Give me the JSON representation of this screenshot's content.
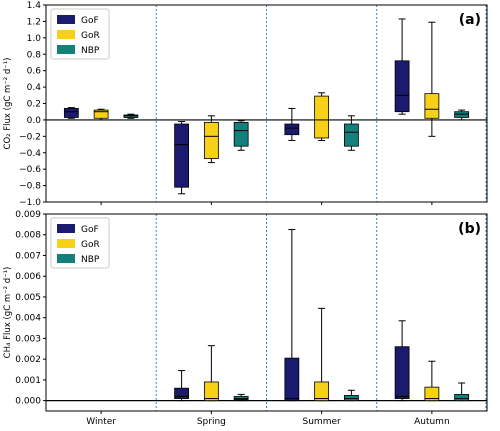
{
  "chart_data": [
    {
      "type": "box",
      "panel_label": "(a)",
      "ylabel": "CO₂ Flux (gC m⁻² d⁻¹)",
      "ylim": [
        -1.0,
        1.4
      ],
      "yticks": [
        "−1.0",
        "−0.8",
        "−0.6",
        "−0.4",
        "−0.2",
        "0.0",
        "0.2",
        "0.4",
        "0.6",
        "0.8",
        "1.0",
        "1.2",
        "1.4"
      ],
      "ytick_values": [
        -1.0,
        -0.8,
        -0.6,
        -0.4,
        -0.2,
        0.0,
        0.2,
        0.4,
        0.6,
        0.8,
        1.0,
        1.2,
        1.4
      ],
      "categories": [
        "Winter",
        "Spring",
        "Summer",
        "Autumn"
      ],
      "legend_position": "upper-left",
      "zero_line": true,
      "season_separators": "dotted",
      "series": [
        {
          "name": "GoF",
          "color": "#1a1a6e",
          "boxes": [
            {
              "whislo": 0.02,
              "q1": 0.03,
              "med": 0.1,
              "q3": 0.14,
              "whishi": 0.15
            },
            {
              "whislo": -0.9,
              "q1": -0.82,
              "med": -0.3,
              "q3": -0.05,
              "whishi": -0.02
            },
            {
              "whislo": -0.25,
              "q1": -0.18,
              "med": -0.1,
              "q3": -0.05,
              "whishi": 0.14
            },
            {
              "whislo": 0.07,
              "q1": 0.1,
              "med": 0.3,
              "q3": 0.72,
              "whishi": 1.23
            }
          ]
        },
        {
          "name": "GoR",
          "color": "#f7d117",
          "boxes": [
            {
              "whislo": 0.0,
              "q1": 0.02,
              "med": 0.1,
              "q3": 0.12,
              "whishi": 0.13
            },
            {
              "whislo": -0.52,
              "q1": -0.47,
              "med": -0.2,
              "q3": -0.03,
              "whishi": 0.05
            },
            {
              "whislo": -0.25,
              "q1": -0.22,
              "med": 0.0,
              "q3": 0.29,
              "whishi": 0.33
            },
            {
              "whislo": -0.2,
              "q1": 0.02,
              "med": 0.13,
              "q3": 0.32,
              "whishi": 1.19
            }
          ]
        },
        {
          "name": "NBP",
          "color": "#13807e",
          "boxes": [
            {
              "whislo": 0.02,
              "q1": 0.03,
              "med": 0.05,
              "q3": 0.06,
              "whishi": 0.07
            },
            {
              "whislo": -0.37,
              "q1": -0.32,
              "med": -0.13,
              "q3": -0.03,
              "whishi": -0.01
            },
            {
              "whislo": -0.37,
              "q1": -0.32,
              "med": -0.15,
              "q3": -0.05,
              "whishi": 0.05
            },
            {
              "whislo": 0.0,
              "q1": 0.03,
              "med": 0.07,
              "q3": 0.1,
              "whishi": 0.12
            }
          ]
        }
      ]
    },
    {
      "type": "box",
      "panel_label": "(b)",
      "ylabel": "CH₄ Flux (gC m⁻² d⁻¹)",
      "ylim": [
        -0.0005,
        0.009
      ],
      "yticks": [
        "0.000",
        "0.001",
        "0.002",
        "0.003",
        "0.004",
        "0.005",
        "0.006",
        "0.007",
        "0.008",
        "0.009"
      ],
      "ytick_values": [
        0.0,
        0.001,
        0.002,
        0.003,
        0.004,
        0.005,
        0.006,
        0.007,
        0.008,
        0.009
      ],
      "categories": [
        "Winter",
        "Spring",
        "Summer",
        "Autumn"
      ],
      "legend_position": "upper-left",
      "zero_line": true,
      "season_separators": "dotted",
      "series": [
        {
          "name": "GoF",
          "color": "#1a1a6e",
          "boxes": [
            null,
            {
              "whislo": 0.0,
              "q1": 0.0001,
              "med": 0.0002,
              "q3": 0.0006,
              "whishi": 0.00145
            },
            {
              "whislo": 0.0,
              "q1": 0.0,
              "med": 0.0001,
              "q3": 0.00205,
              "whishi": 0.00825
            },
            {
              "whislo": 0.0,
              "q1": 0.0001,
              "med": 0.0002,
              "q3": 0.0026,
              "whishi": 0.00385
            }
          ]
        },
        {
          "name": "GoR",
          "color": "#f7d117",
          "boxes": [
            null,
            {
              "whislo": 0.0,
              "q1": 0.0,
              "med": 0.0001,
              "q3": 0.0009,
              "whishi": 0.00265
            },
            {
              "whislo": 0.0,
              "q1": 0.0,
              "med": 0.0001,
              "q3": 0.0009,
              "whishi": 0.00445
            },
            {
              "whislo": 0.0,
              "q1": 0.0,
              "med": 0.0001,
              "q3": 0.00065,
              "whishi": 0.0019
            }
          ]
        },
        {
          "name": "NBP",
          "color": "#13807e",
          "boxes": [
            null,
            {
              "whislo": 0.0,
              "q1": 5e-05,
              "med": 0.0001,
              "q3": 0.0002,
              "whishi": 0.0003
            },
            {
              "whislo": 0.0,
              "q1": 0.0,
              "med": 0.0001,
              "q3": 0.00025,
              "whishi": 0.0005
            },
            {
              "whislo": 0.0,
              "q1": 0.0,
              "med": 0.0001,
              "q3": 0.0003,
              "whishi": 0.00085
            }
          ]
        }
      ]
    }
  ]
}
